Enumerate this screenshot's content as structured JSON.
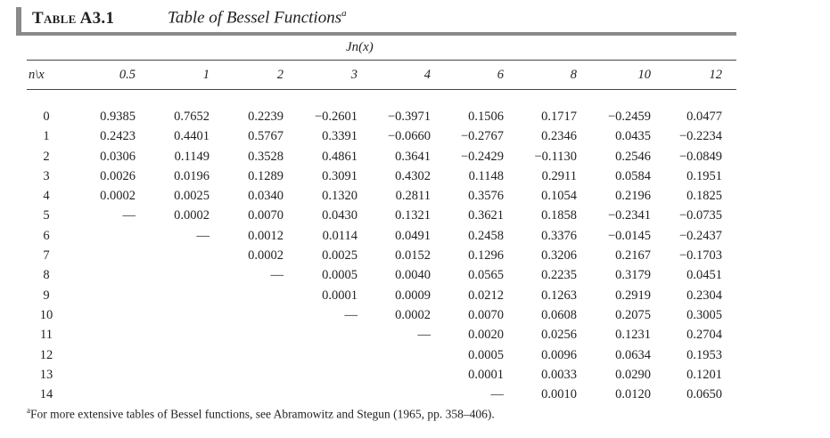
{
  "title": {
    "label": "Table A3.1",
    "text": "Table of Bessel Functions",
    "footnote_mark": "a"
  },
  "function_header": "Jn(x)",
  "corner_label": "n\\x",
  "x_values": [
    "0.5",
    "1",
    "2",
    "3",
    "4",
    "6",
    "8",
    "10",
    "12"
  ],
  "rows": [
    {
      "n": "0",
      "cells": [
        "0.9385",
        "0.7652",
        "0.2239",
        "−0.2601",
        "−0.3971",
        "0.1506",
        "0.1717",
        "−0.2459",
        "0.0477"
      ]
    },
    {
      "n": "1",
      "cells": [
        "0.2423",
        "0.4401",
        "0.5767",
        "0.3391",
        "−0.0660",
        "−0.2767",
        "0.2346",
        "0.0435",
        "−0.2234"
      ]
    },
    {
      "n": "2",
      "cells": [
        "0.0306",
        "0.1149",
        "0.3528",
        "0.4861",
        "0.3641",
        "−0.2429",
        "−0.1130",
        "0.2546",
        "−0.0849"
      ]
    },
    {
      "n": "3",
      "cells": [
        "0.0026",
        "0.0196",
        "0.1289",
        "0.3091",
        "0.4302",
        "0.1148",
        "0.2911",
        "0.0584",
        "0.1951"
      ]
    },
    {
      "n": "4",
      "cells": [
        "0.0002",
        "0.0025",
        "0.0340",
        "0.1320",
        "0.2811",
        "0.3576",
        "0.1054",
        "0.2196",
        "0.1825"
      ]
    },
    {
      "n": "5",
      "cells": [
        "—",
        "0.0002",
        "0.0070",
        "0.0430",
        "0.1321",
        "0.3621",
        "0.1858",
        "−0.2341",
        "−0.0735"
      ]
    },
    {
      "n": "6",
      "cells": [
        "",
        "—",
        "0.0012",
        "0.0114",
        "0.0491",
        "0.2458",
        "0.3376",
        "−0.0145",
        "−0.2437"
      ]
    },
    {
      "n": "7",
      "cells": [
        "",
        "",
        "0.0002",
        "0.0025",
        "0.0152",
        "0.1296",
        "0.3206",
        "0.2167",
        "−0.1703"
      ]
    },
    {
      "n": "8",
      "cells": [
        "",
        "",
        "—",
        "0.0005",
        "0.0040",
        "0.0565",
        "0.2235",
        "0.3179",
        "0.0451"
      ]
    },
    {
      "n": "9",
      "cells": [
        "",
        "",
        "",
        "0.0001",
        "0.0009",
        "0.0212",
        "0.1263",
        "0.2919",
        "0.2304"
      ]
    },
    {
      "n": "10",
      "cells": [
        "",
        "",
        "",
        "—",
        "0.0002",
        "0.0070",
        "0.0608",
        "0.2075",
        "0.3005"
      ]
    },
    {
      "n": "11",
      "cells": [
        "",
        "",
        "",
        "",
        "—",
        "0.0020",
        "0.0256",
        "0.1231",
        "0.2704"
      ]
    },
    {
      "n": "12",
      "cells": [
        "",
        "",
        "",
        "",
        "",
        "0.0005",
        "0.0096",
        "0.0634",
        "0.1953"
      ]
    },
    {
      "n": "13",
      "cells": [
        "",
        "",
        "",
        "",
        "",
        "0.0001",
        "0.0033",
        "0.0290",
        "0.1201"
      ]
    },
    {
      "n": "14",
      "cells": [
        "",
        "",
        "",
        "",
        "",
        "—",
        "0.0010",
        "0.0120",
        "0.0650"
      ]
    }
  ],
  "footnote": {
    "mark": "a",
    "text": "For more extensive tables of Bessel functions, see Abramowitz and Stegun (1965, pp. 358–406)."
  }
}
